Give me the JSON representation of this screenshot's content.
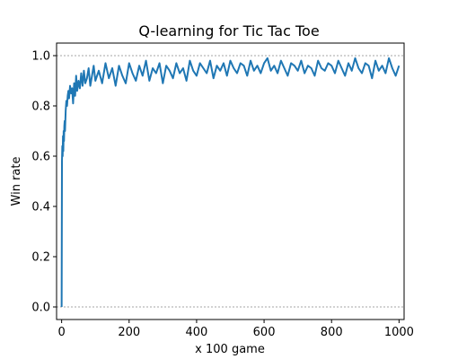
{
  "chart_data": {
    "type": "line",
    "title": "Q-learning for Tic Tac Toe",
    "xlabel": "x 100 game",
    "ylabel": "Win rate",
    "xlim": [
      -15,
      1015
    ],
    "ylim": [
      -0.05,
      1.05
    ],
    "x_ticks": [
      0,
      200,
      400,
      600,
      800,
      1000
    ],
    "x_tick_labels": [
      "0",
      "200",
      "400",
      "600",
      "800",
      "1000"
    ],
    "y_ticks": [
      0.0,
      0.2,
      0.4,
      0.6,
      0.8,
      1.0
    ],
    "y_tick_labels": [
      "0.0",
      "0.2",
      "0.4",
      "0.6",
      "0.8",
      "1.0"
    ],
    "reference_lines": [
      0.0,
      1.0
    ],
    "grid": false,
    "line_color": "#1f77b4",
    "x": [
      0,
      1,
      2,
      3,
      4,
      5,
      6,
      7,
      8,
      9,
      10,
      12,
      14,
      16,
      18,
      20,
      22,
      25,
      28,
      31,
      34,
      37,
      40,
      43,
      46,
      50,
      54,
      58,
      62,
      66,
      70,
      75,
      80,
      85,
      90,
      95,
      100,
      110,
      120,
      130,
      140,
      150,
      160,
      170,
      180,
      190,
      200,
      210,
      220,
      230,
      240,
      250,
      260,
      270,
      280,
      290,
      300,
      310,
      320,
      330,
      340,
      350,
      360,
      370,
      380,
      390,
      400,
      410,
      420,
      430,
      440,
      450,
      460,
      470,
      480,
      490,
      500,
      510,
      520,
      530,
      540,
      550,
      560,
      570,
      580,
      590,
      600,
      610,
      620,
      630,
      640,
      650,
      660,
      670,
      680,
      690,
      700,
      710,
      720,
      730,
      740,
      750,
      760,
      770,
      780,
      790,
      800,
      810,
      820,
      830,
      840,
      850,
      860,
      870,
      880,
      890,
      900,
      910,
      920,
      930,
      940,
      950,
      960,
      970,
      980,
      990,
      1000
    ],
    "y": [
      0.0,
      0.58,
      0.64,
      0.6,
      0.68,
      0.62,
      0.7,
      0.66,
      0.72,
      0.74,
      0.7,
      0.78,
      0.82,
      0.8,
      0.84,
      0.86,
      0.83,
      0.88,
      0.85,
      0.87,
      0.81,
      0.89,
      0.84,
      0.92,
      0.86,
      0.9,
      0.87,
      0.93,
      0.88,
      0.94,
      0.89,
      0.91,
      0.95,
      0.88,
      0.92,
      0.96,
      0.9,
      0.94,
      0.89,
      0.97,
      0.91,
      0.95,
      0.88,
      0.96,
      0.92,
      0.89,
      0.97,
      0.93,
      0.9,
      0.96,
      0.92,
      0.98,
      0.9,
      0.95,
      0.93,
      0.97,
      0.89,
      0.96,
      0.94,
      0.91,
      0.97,
      0.93,
      0.95,
      0.9,
      0.98,
      0.94,
      0.92,
      0.97,
      0.95,
      0.93,
      0.98,
      0.91,
      0.96,
      0.94,
      0.97,
      0.92,
      0.98,
      0.95,
      0.93,
      0.97,
      0.96,
      0.92,
      0.98,
      0.94,
      0.96,
      0.93,
      0.97,
      0.99,
      0.94,
      0.96,
      0.93,
      0.98,
      0.95,
      0.92,
      0.97,
      0.96,
      0.94,
      0.98,
      0.93,
      0.96,
      0.95,
      0.92,
      0.98,
      0.95,
      0.94,
      0.97,
      0.96,
      0.93,
      0.98,
      0.95,
      0.92,
      0.97,
      0.94,
      0.99,
      0.95,
      0.93,
      0.97,
      0.96,
      0.91,
      0.98,
      0.94,
      0.96,
      0.93,
      0.99,
      0.95,
      0.92,
      0.96
    ]
  }
}
